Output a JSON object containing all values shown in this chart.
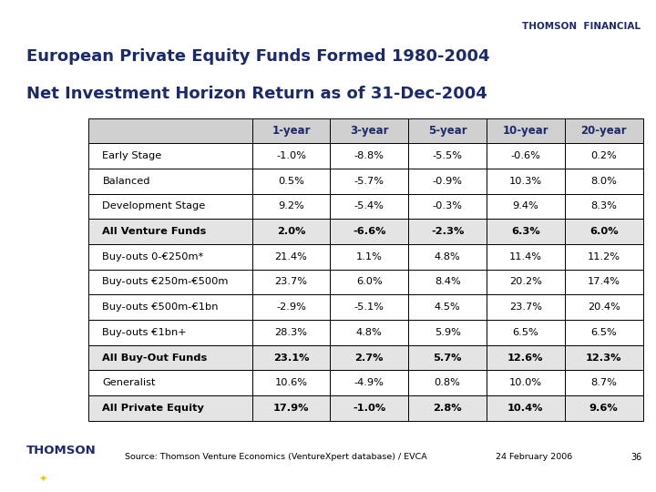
{
  "title_line1": "European Private Equity Funds Formed 1980-2004",
  "title_line2": "Net Investment Horizon Return as of 31-Dec-2004",
  "header_label": "THOMSON  FINANCIAL",
  "col_headers": [
    "1-year",
    "3-year",
    "5-year",
    "10-year",
    "20-year"
  ],
  "rows": [
    {
      "label": "Early Stage",
      "values": [
        "-1.0%",
        "-8.8%",
        "-5.5%",
        "-0.6%",
        "0.2%"
      ],
      "bold": false
    },
    {
      "label": "Balanced",
      "values": [
        "0.5%",
        "-5.7%",
        "-0.9%",
        "10.3%",
        "8.0%"
      ],
      "bold": false
    },
    {
      "label": "Development Stage",
      "values": [
        "9.2%",
        "-5.4%",
        "-0.3%",
        "9.4%",
        "8.3%"
      ],
      "bold": false
    },
    {
      "label": "All Venture Funds",
      "values": [
        "2.0%",
        "-6.6%",
        "-2.3%",
        "6.3%",
        "6.0%"
      ],
      "bold": true
    },
    {
      "label": "Buy-outs 0-€250m*",
      "values": [
        "21.4%",
        "1.1%",
        "4.8%",
        "11.4%",
        "11.2%"
      ],
      "bold": false
    },
    {
      "label": "Buy-outs €250m-€500m",
      "values": [
        "23.7%",
        "6.0%",
        "8.4%",
        "20.2%",
        "17.4%"
      ],
      "bold": false
    },
    {
      "label": "Buy-outs €500m-€1bn",
      "values": [
        "-2.9%",
        "-5.1%",
        "4.5%",
        "23.7%",
        "20.4%"
      ],
      "bold": false
    },
    {
      "label": "Buy-outs €1bn+",
      "values": [
        "28.3%",
        "4.8%",
        "5.9%",
        "6.5%",
        "6.5%"
      ],
      "bold": false
    },
    {
      "label": "All Buy-Out Funds",
      "values": [
        "23.1%",
        "2.7%",
        "5.7%",
        "12.6%",
        "12.3%"
      ],
      "bold": true
    },
    {
      "label": "Generalist",
      "values": [
        "10.6%",
        "-4.9%",
        "0.8%",
        "10.0%",
        "8.7%"
      ],
      "bold": false
    },
    {
      "label": "All Private Equity",
      "values": [
        "17.9%",
        "-1.0%",
        "2.8%",
        "10.4%",
        "9.6%"
      ],
      "bold": true
    }
  ],
  "source_text": "Source: Thomson Venture Economics (VentureXpert database) / EVCA",
  "date_text": "24 February 2006",
  "page_num": "36",
  "gold_color": "#F5C400",
  "dark_navy": "#1B2A6B",
  "header_bg": "#D0D0D0",
  "bold_row_bg": "#E4E4E4",
  "white_bg": "#FFFFFF",
  "table_border": "#000000"
}
